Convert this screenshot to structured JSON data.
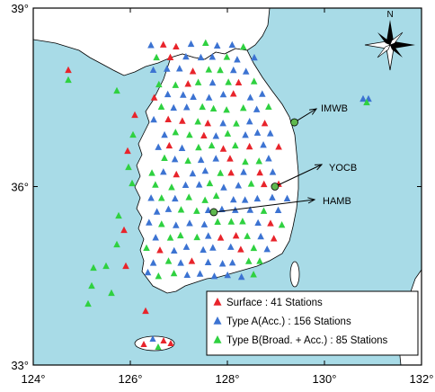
{
  "map": {
    "lon_range": [
      124,
      132
    ],
    "lat_range": [
      33,
      39
    ],
    "x_ticks": [
      "124°",
      "126°",
      "128°",
      "130°",
      "132°"
    ],
    "y_ticks": [
      "33°",
      "36°",
      "39°"
    ],
    "colors": {
      "sea": "#a8dbe7",
      "land": "#ffffff",
      "surface": "#e8242b",
      "typeA": "#3c73d2",
      "typeB": "#2fd140",
      "marker": "#5fb84e"
    }
  },
  "compass": {
    "label": "N",
    "icon": "compass-rose-icon"
  },
  "stations": [
    {
      "name": "IMWB",
      "lon": 129.38,
      "lat": 37.08
    },
    {
      "name": "YOCB",
      "lon": 128.98,
      "lat": 36.0
    },
    {
      "name": "HAMB",
      "lon": 127.72,
      "lat": 35.57
    }
  ],
  "legend": {
    "items": [
      {
        "type": "surface",
        "label": "Surface : 41 Stations"
      },
      {
        "type": "typeA",
        "label": "Type A(Acc.) : 156 Stations"
      },
      {
        "type": "typeB",
        "label": "Type B(Broad. + Acc.) : 85 Stations"
      }
    ]
  }
}
